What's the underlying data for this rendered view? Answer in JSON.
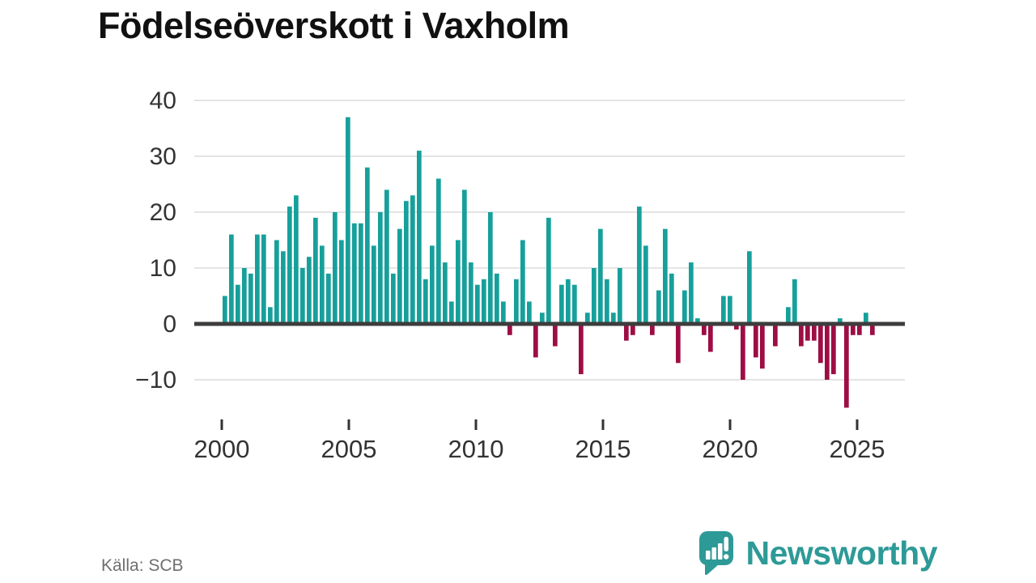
{
  "title": "Födelseöverskott i Vaxholm",
  "footer": {
    "source": "Källa: SCB"
  },
  "brand": {
    "name": "Newsworthy",
    "color": "#2e9a97"
  },
  "colors": {
    "positive": "#17a09b",
    "negative": "#9e0d44",
    "grid": "#e4e4e4",
    "zero_line": "#3d3d3d",
    "axis_text": "#333333",
    "title_text": "#111111",
    "source_text": "#6f6f6f"
  },
  "chart_data": {
    "type": "bar",
    "title": "Födelseöverskott i Vaxholm",
    "frequency": "quarterly",
    "x_start": "2000-Q1",
    "x_end": "2025-Q1",
    "x_tick_labels": [
      "2000",
      "2005",
      "2010",
      "2015",
      "2020",
      "2025"
    ],
    "y_ticks": [
      40,
      30,
      20,
      10,
      0,
      -10
    ],
    "ylim": [
      -16,
      42
    ],
    "grid": true,
    "legend": "none",
    "series_note": "positive bars teal, negative bars crimson",
    "values": [
      5,
      16,
      7,
      10,
      9,
      16,
      16,
      3,
      15,
      13,
      21,
      23,
      10,
      12,
      19,
      14,
      9,
      20,
      15,
      37,
      18,
      18,
      28,
      14,
      20,
      24,
      9,
      17,
      22,
      23,
      31,
      8,
      14,
      26,
      11,
      4,
      15,
      24,
      11,
      7,
      8,
      20,
      9,
      4,
      -2,
      8,
      15,
      4,
      -6,
      2,
      19,
      -4,
      7,
      8,
      7,
      -9,
      2,
      10,
      17,
      8,
      2,
      10,
      -3,
      -2,
      21,
      14,
      -2,
      6,
      17,
      9,
      -7,
      6,
      11,
      1,
      -2,
      -5,
      0,
      5,
      5,
      -1,
      -10,
      13,
      -6,
      -8,
      0,
      -4,
      0,
      3,
      8,
      -4,
      -3,
      -3,
      -7,
      -10,
      -9,
      1,
      -15,
      -2,
      -2,
      2,
      -2
    ]
  }
}
